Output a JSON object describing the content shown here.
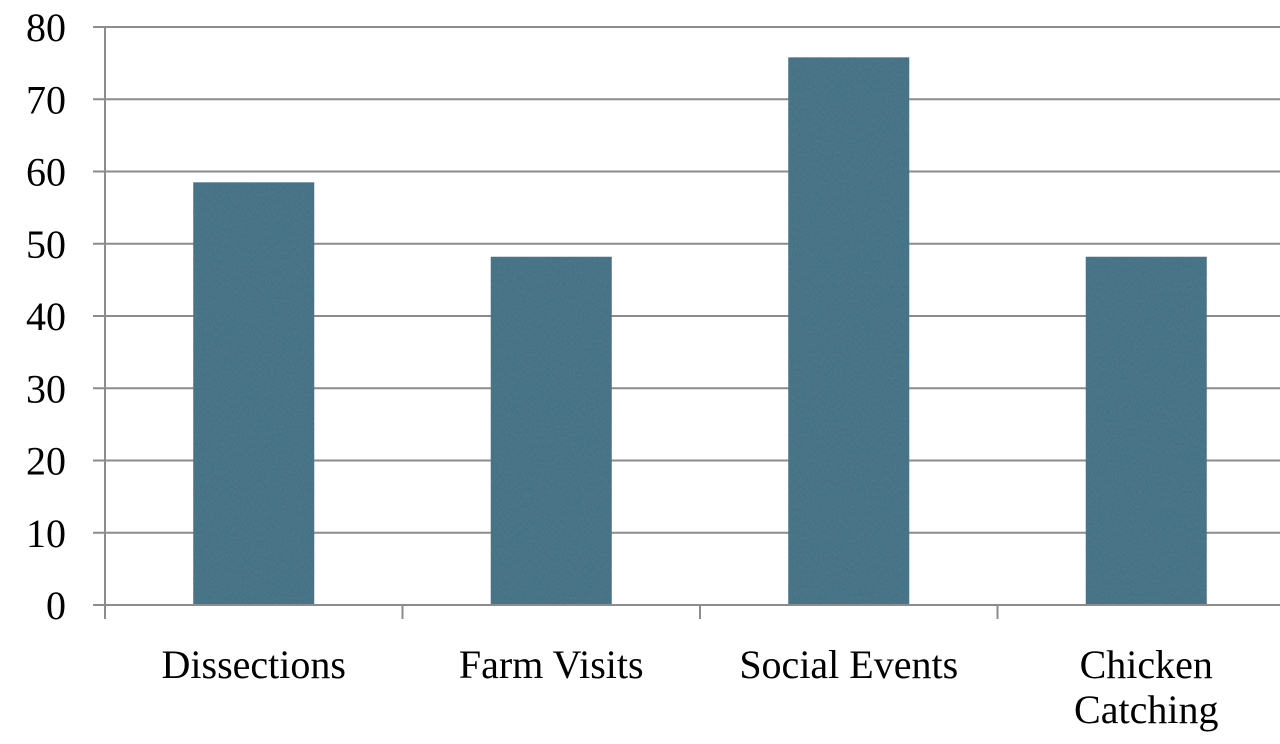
{
  "chart_data": {
    "type": "bar",
    "categories": [
      "Dissections",
      "Farm Visits",
      "Social Events",
      "Chicken Catching"
    ],
    "category_lines": [
      [
        "Dissections"
      ],
      [
        "Farm Visits"
      ],
      [
        "Social Events"
      ],
      [
        "Chicken",
        "Catching"
      ]
    ],
    "values": [
      58.5,
      48.2,
      75.8,
      48.2
    ],
    "ylim": [
      0,
      80
    ],
    "yticks": [
      "0",
      "10",
      "20",
      "30",
      "40",
      "50",
      "60",
      "70",
      "80"
    ],
    "grid": true,
    "bar_color": "#4f7d92",
    "grid_color": "#8c8c8c",
    "title": "",
    "xlabel": "",
    "ylabel": ""
  }
}
